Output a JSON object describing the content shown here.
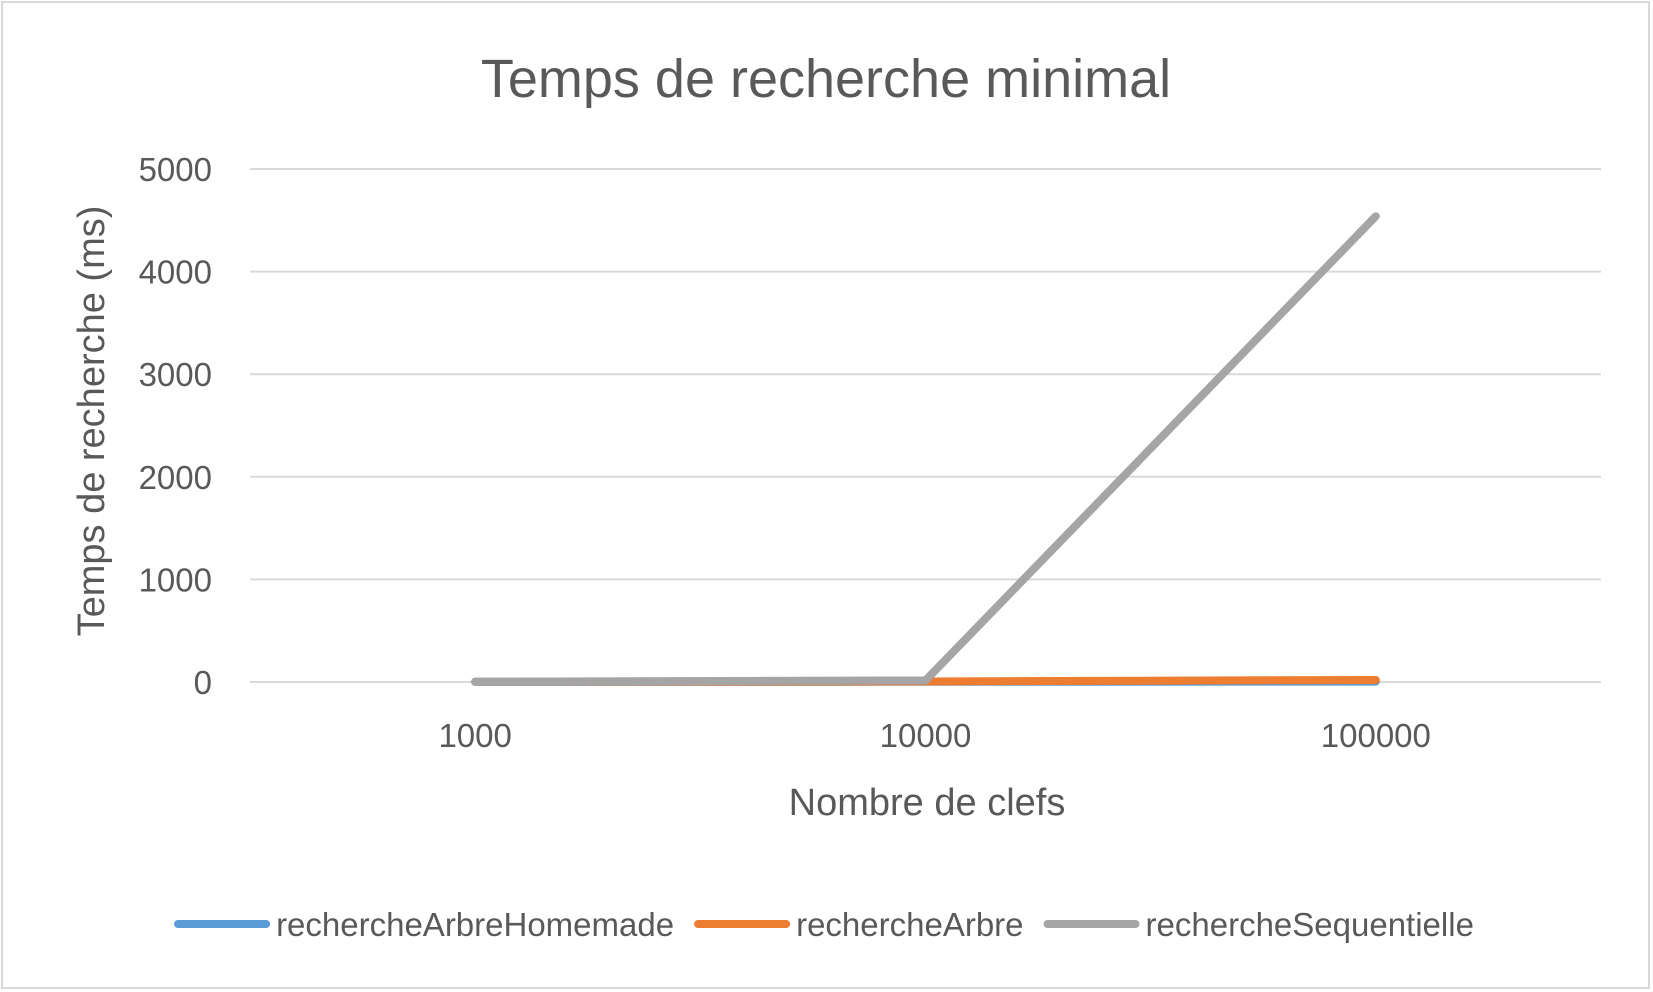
{
  "chart_data": {
    "type": "line",
    "title": "Temps de recherche minimal",
    "xlabel": "Nombre de clefs",
    "ylabel": "Temps de recherche (ms)",
    "categories": [
      "1000",
      "10000",
      "100000"
    ],
    "ylim": [
      0,
      5000
    ],
    "yticks": [
      0,
      1000,
      2000,
      3000,
      4000,
      5000
    ],
    "grid": true,
    "legend_position": "bottom",
    "series": [
      {
        "name": "rechercheArbreHomemade",
        "color": "#5b9bd5",
        "values": [
          1,
          2,
          4
        ]
      },
      {
        "name": "rechercheArbre",
        "color": "#ed7d31",
        "values": [
          2,
          5,
          20
        ]
      },
      {
        "name": "rechercheSequentielle",
        "color": "#a5a5a5",
        "values": [
          3,
          15,
          4540
        ]
      }
    ]
  }
}
